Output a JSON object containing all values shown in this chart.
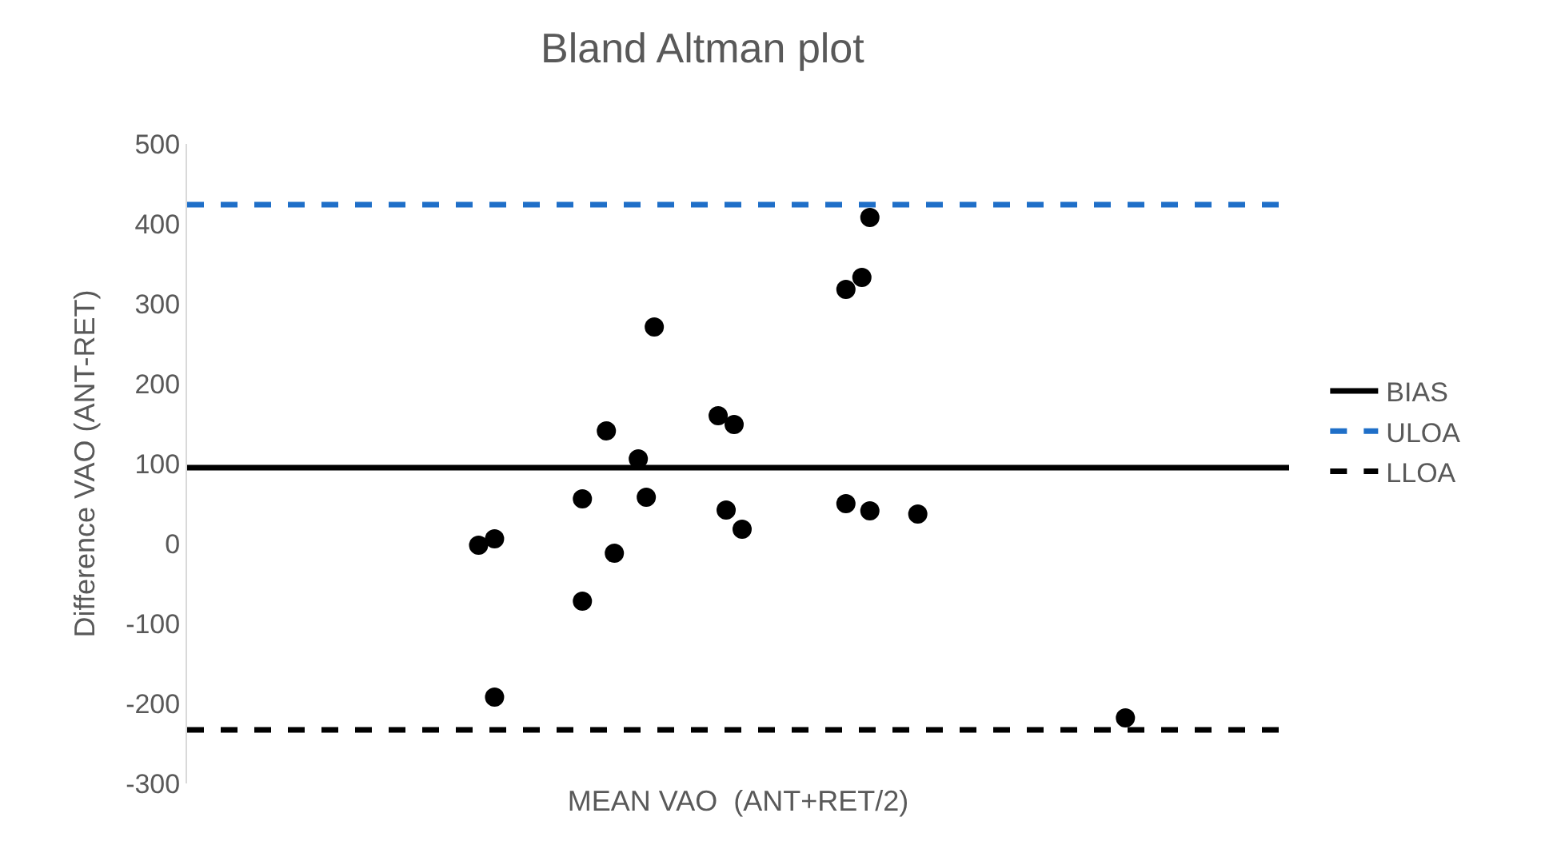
{
  "chart_data": {
    "type": "scatter",
    "title": "Bland Altman plot",
    "xlabel": "MEAN VAO  (ANT+RET/2)",
    "ylabel": "Difference VAO (ANT-RET)",
    "categories": [
      null,
      null,
      null,
      null,
      null,
      null,
      null,
      null,
      null,
      null,
      null,
      null,
      null,
      null,
      null,
      null,
      null,
      null,
      null,
      null,
      null,
      null,
      null,
      null,
      null,
      null,
      null,
      null,
      null,
      null,
      null,
      null,
      null,
      null,
      null,
      null,
      null,
      null,
      null,
      null,
      null,
      null,
      null,
      null,
      null,
      null,
      null,
      null,
      null,
      null,
      null,
      null,
      null,
      null,
      null,
      null,
      null,
      null,
      null,
      null,
      null,
      null,
      null,
      null,
      null,
      null,
      null,
      null,
      null,
      null,
      null,
      null,
      null,
      null,
      null,
      null,
      null,
      null,
      null,
      null,
      null,
      null,
      null,
      null,
      null,
      null,
      null,
      null,
      null,
      null,
      null,
      null,
      null,
      null,
      null,
      null,
      null,
      null,
      null,
      null,
      null,
      null,
      null,
      null,
      null,
      null,
      null,
      null,
      null,
      null,
      null,
      null,
      null,
      null,
      null,
      null,
      null,
      null,
      null,
      null,
      null,
      null,
      null,
      null,
      null,
      null,
      null,
      null,
      null,
      null,
      null,
      null,
      null,
      null,
      null,
      null,
      null,
      null
    ],
    "series": [
      {
        "color": "#000000",
        "values": [
          null,
          null,
          null,
          null,
          null,
          null,
          null,
          null,
          null,
          null,
          null,
          null,
          null,
          null,
          null,
          null,
          null,
          null,
          null,
          null,
          null,
          null,
          null,
          null,
          null,
          null,
          null,
          null,
          null,
          null,
          null,
          null,
          null,
          null,
          null,
          null,
          -2,
          null,
          6,
          null,
          null,
          null,
          null,
          null,
          null,
          null,
          null,
          null,
          null,
          56,
          null,
          null,
          141,
          -12,
          null,
          null,
          106,
          58,
          271,
          null,
          null,
          null,
          null,
          null,
          null,
          null,
          160,
          42,
          149,
          18,
          null,
          null,
          null,
          null,
          null,
          null,
          null,
          null,
          null,
          null,
          null,
          null,
          318,
          null,
          333,
          41,
          null,
          null,
          null,
          null,
          null,
          37,
          null,
          null,
          null,
          null,
          null,
          null,
          null,
          null,
          null,
          null,
          null,
          null,
          null,
          null,
          null,
          null,
          null,
          null,
          null,
          null,
          null,
          null,
          null,
          null,
          null,
          -218,
          null,
          null,
          null,
          null,
          null,
          null,
          null,
          null,
          null,
          null,
          null,
          null,
          null,
          null,
          null,
          null,
          null,
          null,
          null,
          null
        ]
      },
      {
        "color": "#000000",
        "values": [
          null,
          null,
          null,
          null,
          null,
          null,
          null,
          null,
          null,
          null,
          null,
          null,
          null,
          null,
          null,
          null,
          null,
          null,
          null,
          null,
          null,
          null,
          null,
          null,
          null,
          null,
          null,
          null,
          null,
          null,
          null,
          null,
          null,
          null,
          null,
          null,
          null,
          null,
          -192,
          null,
          null,
          null,
          null,
          null,
          null,
          null,
          null,
          null,
          null,
          -72,
          null,
          null,
          null,
          null,
          null,
          null,
          null,
          null,
          null,
          null,
          null,
          null,
          null,
          null,
          null,
          null,
          null,
          null,
          null,
          null,
          null,
          null,
          null,
          null,
          null,
          null,
          null,
          null,
          null,
          null,
          null,
          null,
          50,
          null,
          null,
          408,
          null,
          null,
          null,
          null,
          null,
          null,
          null,
          null,
          null,
          null,
          null,
          null,
          null,
          null,
          null,
          null,
          null,
          null,
          null,
          null,
          null,
          null,
          null,
          null,
          null,
          null,
          null,
          null,
          null,
          null,
          null,
          null,
          null,
          null,
          null,
          null,
          null,
          null,
          null,
          null,
          null,
          null,
          null,
          null,
          null,
          null,
          null,
          null,
          null,
          null,
          null,
          null
        ]
      }
    ],
    "ref_lines": [
      {
        "axis": "y",
        "value": -233,
        "label": "LLOA",
        "color": "#000000",
        "line_style": "dashed"
      },
      {
        "axis": "y",
        "value": 424,
        "label": "ULOA",
        "color": "#1f6fc8",
        "line_style": "dashed"
      },
      {
        "axis": "y",
        "value": 95,
        "label": "BIAS",
        "color": "#000000",
        "line_style": "solid"
      }
    ],
    "ylim": [
      -300,
      500
    ],
    "yticks": [
      -300,
      -200,
      -100,
      0,
      100,
      200,
      300,
      400,
      500
    ],
    "tick_labels": "y",
    "grid": false,
    "legend": "right",
    "marker": "circle"
  }
}
